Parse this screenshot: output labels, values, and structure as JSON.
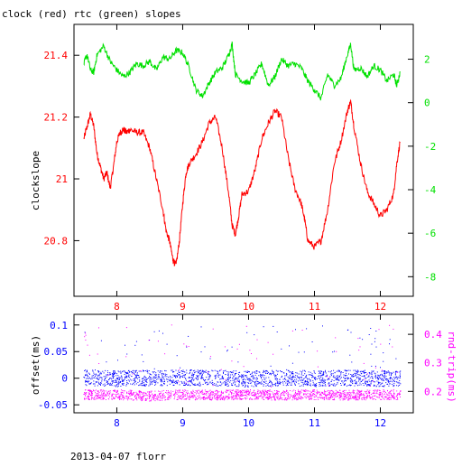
{
  "title": "clock (red) rtc (green) slopes",
  "footer": "2013-04-07 florr",
  "colors": {
    "clock": "#ff0000",
    "rtc": "#00e000",
    "offset": "#0000ff",
    "rtt": "#ff00ff",
    "axis": "#000000"
  },
  "chart_data": [
    {
      "type": "line",
      "title": "clock (red) rtc (green) slopes",
      "ylabel": "clockslope",
      "xlim": [
        7.35,
        12.5
      ],
      "ylim": [
        20.62,
        21.5
      ],
      "y2lim": [
        -8.9,
        3.6
      ],
      "x_ticks": [
        "8",
        "9",
        "10",
        "11",
        "12"
      ],
      "x_tick_values": [
        8,
        9,
        10,
        11,
        12
      ],
      "y_ticks": [
        "20.8",
        "21",
        "21.2",
        "21.4"
      ],
      "y_tick_values": [
        20.8,
        21.0,
        21.2,
        21.4
      ],
      "y2_ticks": [
        "-8",
        "-6",
        "-4",
        "-2",
        "0",
        "2"
      ],
      "y2_tick_values": [
        -8,
        -6,
        -4,
        -2,
        0,
        2
      ],
      "series": [
        {
          "axis": "left",
          "x": [
            7.5,
            7.55,
            7.6,
            7.65,
            7.7,
            7.75,
            7.8,
            7.85,
            7.9,
            7.95,
            8.0,
            8.05,
            8.1,
            8.15,
            8.2,
            8.3,
            8.4,
            8.5,
            8.6,
            8.7,
            8.75,
            8.8,
            8.85,
            8.9,
            8.95,
            9.0,
            9.05,
            9.1,
            9.2,
            9.3,
            9.4,
            9.5,
            9.6,
            9.7,
            9.75,
            9.8,
            9.85,
            9.9,
            10.0,
            10.1,
            10.2,
            10.3,
            10.4,
            10.5,
            10.6,
            10.7,
            10.8,
            10.85,
            10.9,
            11.0,
            11.1,
            11.2,
            11.3,
            11.4,
            11.5,
            11.55,
            11.6,
            11.7,
            11.8,
            11.9,
            12.0,
            12.1,
            12.2,
            12.25,
            12.3
          ],
          "y": [
            21.13,
            21.17,
            21.21,
            21.17,
            21.08,
            21.04,
            21.0,
            21.02,
            20.97,
            21.04,
            21.12,
            21.15,
            21.16,
            21.15,
            21.16,
            21.15,
            21.15,
            21.1,
            21.0,
            20.9,
            20.83,
            20.8,
            20.74,
            20.72,
            20.8,
            20.92,
            21.02,
            21.05,
            21.08,
            21.12,
            21.18,
            21.2,
            21.1,
            20.95,
            20.85,
            20.82,
            20.88,
            20.95,
            20.96,
            21.03,
            21.13,
            21.18,
            21.22,
            21.2,
            21.07,
            20.97,
            20.92,
            20.87,
            20.8,
            20.78,
            20.8,
            20.9,
            21.05,
            21.12,
            21.22,
            21.25,
            21.17,
            21.05,
            20.96,
            20.92,
            20.88,
            20.9,
            20.95,
            21.05,
            21.12
          ]
        },
        {
          "axis": "right",
          "x": [
            7.5,
            7.55,
            7.6,
            7.65,
            7.7,
            7.8,
            7.9,
            8.0,
            8.1,
            8.2,
            8.3,
            8.4,
            8.5,
            8.6,
            8.7,
            8.8,
            8.9,
            9.0,
            9.1,
            9.2,
            9.3,
            9.4,
            9.5,
            9.6,
            9.7,
            9.75,
            9.8,
            9.9,
            10.0,
            10.1,
            10.2,
            10.3,
            10.4,
            10.5,
            10.6,
            10.7,
            10.8,
            10.9,
            11.0,
            11.1,
            11.2,
            11.3,
            11.4,
            11.5,
            11.55,
            11.6,
            11.7,
            11.8,
            11.9,
            12.0,
            12.1,
            12.2,
            12.25,
            12.3
          ],
          "y": [
            1.8,
            2.2,
            1.5,
            1.4,
            2.2,
            2.6,
            1.9,
            1.5,
            1.2,
            1.4,
            1.8,
            1.7,
            1.9,
            1.5,
            2.1,
            2.0,
            2.4,
            2.3,
            1.6,
            0.6,
            0.3,
            0.9,
            1.4,
            1.6,
            2.2,
            2.7,
            1.3,
            1.0,
            0.9,
            1.3,
            1.8,
            0.8,
            1.2,
            2.0,
            1.7,
            1.8,
            1.6,
            1.0,
            0.6,
            0.2,
            1.3,
            0.8,
            1.1,
            2.2,
            2.7,
            1.5,
            1.6,
            1.2,
            1.7,
            1.5,
            1.0,
            1.3,
            0.8,
            1.4
          ]
        }
      ]
    },
    {
      "type": "scatter",
      "ylabel": "offset(ms)",
      "y2label": "rnd-trip(ms)",
      "xlim": [
        7.35,
        12.5
      ],
      "ylim": [
        -0.065,
        0.12
      ],
      "y2lim": [
        0.125,
        0.47
      ],
      "x_ticks": [
        "8",
        "9",
        "10",
        "11",
        "12"
      ],
      "x_tick_values": [
        8,
        9,
        10,
        11,
        12
      ],
      "y_ticks": [
        "-0.05",
        "0",
        "0.05",
        "0.1"
      ],
      "y_tick_values": [
        -0.05,
        0,
        0.05,
        0.1
      ],
      "y2_ticks": [
        "0.2",
        "0.3",
        "0.4"
      ],
      "y2_tick_values": [
        0.2,
        0.3,
        0.4
      ],
      "series": [
        {
          "axis": "left",
          "x": [
            7.5,
            8.0,
            8.5,
            9.0,
            9.5,
            10.0,
            10.5,
            11.0,
            11.5,
            12.0,
            12.3
          ],
          "y": [
            0.002,
            0.0,
            0.001,
            0.002,
            0.001,
            -0.001,
            0.002,
            0.0,
            0.001,
            0.0,
            0.001
          ]
        },
        {
          "axis": "right",
          "x": [
            7.5,
            8.0,
            8.5,
            9.0,
            9.5,
            10.0,
            10.5,
            11.0,
            11.5,
            12.0,
            12.3
          ],
          "y": [
            0.19,
            0.19,
            0.185,
            0.19,
            0.188,
            0.19,
            0.188,
            0.19,
            0.188,
            0.19,
            0.19
          ]
        }
      ]
    }
  ]
}
